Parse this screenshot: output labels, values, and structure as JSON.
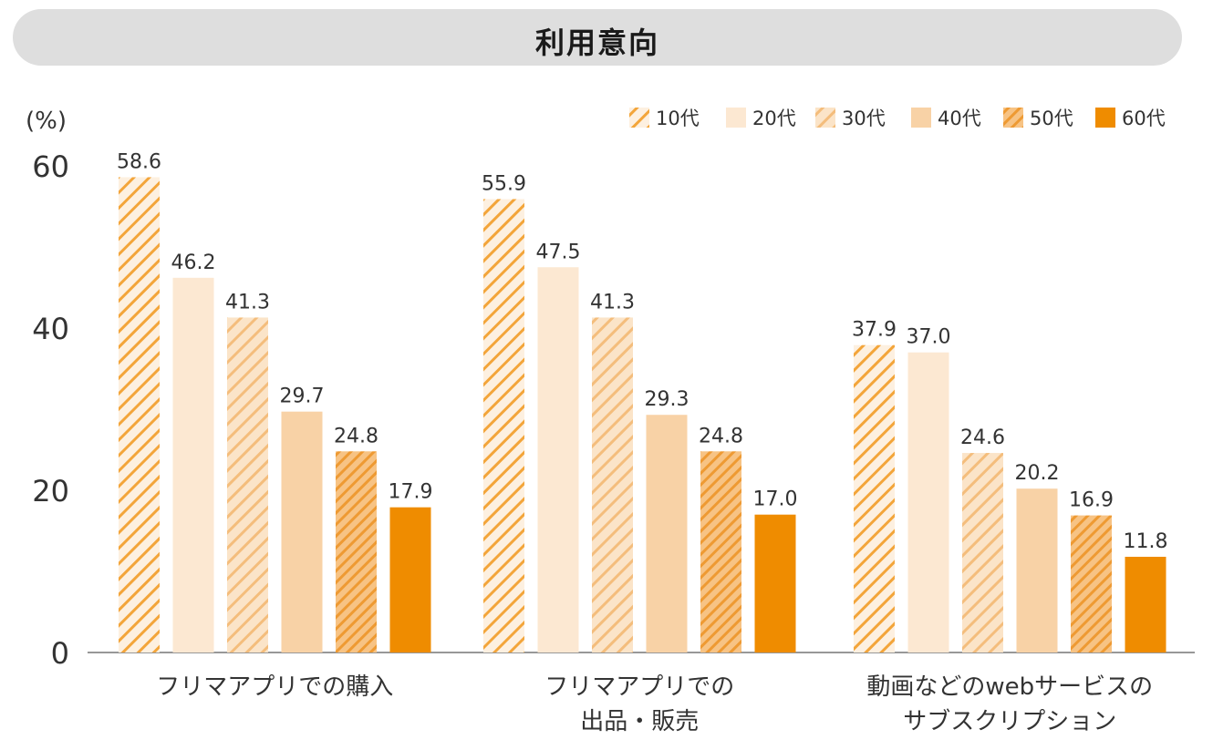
{
  "chart_data": {
    "type": "bar",
    "title": "利用意向",
    "ylabel": "(%)",
    "ylim": [
      0,
      60
    ],
    "yticks": [
      "0",
      "20",
      "40",
      "60"
    ],
    "grid": false,
    "legend_position": "top-right",
    "categories": [
      [
        "フリマアプリでの購入"
      ],
      [
        "フリマアプリでの",
        "出品・販売"
      ],
      [
        "動画などのwebサービスの",
        "サブスクリプション"
      ]
    ],
    "series": [
      {
        "name": "10代",
        "color": "#f3a53a",
        "pattern": "hatch-light",
        "values": [
          58.6,
          55.9,
          37.9
        ],
        "labels": [
          "58.6",
          "55.9",
          "37.9"
        ]
      },
      {
        "name": "20代",
        "color": "#fce8d2",
        "pattern": "solid",
        "values": [
          46.2,
          47.5,
          37.0
        ],
        "labels": [
          "46.2",
          "47.5",
          "37.0"
        ]
      },
      {
        "name": "30代",
        "color": "#f6c88f",
        "pattern": "hatch-pale",
        "values": [
          41.3,
          41.3,
          24.6
        ],
        "labels": [
          "41.3",
          "41.3",
          "24.6"
        ]
      },
      {
        "name": "40代",
        "color": "#f8d2a6",
        "pattern": "solid",
        "values": [
          29.7,
          29.3,
          20.2
        ],
        "labels": [
          "29.7",
          "29.3",
          "20.2"
        ]
      },
      {
        "name": "50代",
        "color": "#f0a040",
        "pattern": "hatch-dense",
        "values": [
          24.8,
          24.8,
          16.9
        ],
        "labels": [
          "24.8",
          "24.8",
          "16.9"
        ]
      },
      {
        "name": "60代",
        "color": "#ef8c00",
        "pattern": "solid",
        "values": [
          17.9,
          17.0,
          11.8
        ],
        "labels": [
          "17.9",
          "17.0",
          "11.8"
        ]
      }
    ]
  }
}
